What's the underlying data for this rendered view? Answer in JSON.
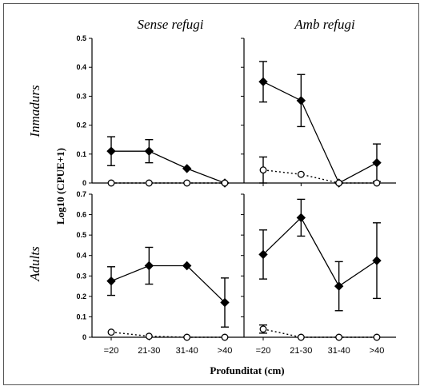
{
  "chart_data": {
    "type": "line",
    "xlabel": "Profunditat (cm)",
    "ylabel": "Log10 (CPUE+1)",
    "categories": [
      "=20",
      "21-30",
      "31-40",
      ">40"
    ],
    "column_titles": [
      "Sense refugi",
      "Amb refugi"
    ],
    "row_titles": [
      "Inmadurs",
      "Adults"
    ],
    "panels": [
      {
        "row": "Inmadurs",
        "column": "Sense refugi",
        "ylim": [
          0,
          0.5
        ],
        "yticks": [
          "0",
          "0.1",
          "0.2",
          "0.3",
          "0.4",
          "0.5"
        ],
        "series": [
          {
            "style": "filled-solid",
            "values": [
              0.11,
              0.11,
              0.05,
              0.0
            ],
            "errors": [
              0.05,
              0.04,
              0.0,
              0.0
            ]
          },
          {
            "style": "open-dotted",
            "values": [
              0.0,
              0.0,
              0.0,
              0.0
            ],
            "errors": [
              0,
              0,
              0,
              0
            ]
          }
        ]
      },
      {
        "row": "Inmadurs",
        "column": "Amb refugi",
        "ylim": [
          0,
          0.5
        ],
        "yticks": [],
        "series": [
          {
            "style": "filled-solid",
            "values": [
              0.35,
              0.285,
              0.0,
              0.07
            ],
            "errors": [
              0.07,
              0.09,
              0.0,
              0.065
            ]
          },
          {
            "style": "open-dotted",
            "values": [
              0.045,
              0.03,
              0.0,
              0.0
            ],
            "errors": [
              0.045,
              0.0,
              0.0,
              0.0
            ]
          }
        ]
      },
      {
        "row": "Adults",
        "column": "Sense refugi",
        "ylim": [
          0,
          0.7
        ],
        "yticks": [
          "0",
          "0.1",
          "0.2",
          "0.3",
          "0.4",
          "0.5",
          "0.6",
          "0.7"
        ],
        "series": [
          {
            "style": "filled-solid",
            "values": [
              0.275,
              0.35,
              0.35,
              0.17
            ],
            "errors": [
              0.07,
              0.09,
              0.0,
              0.12
            ]
          },
          {
            "style": "open-dotted",
            "values": [
              0.025,
              0.005,
              0.0,
              0.0
            ],
            "errors": [
              0,
              0,
              0,
              0
            ]
          }
        ]
      },
      {
        "row": "Adults",
        "column": "Amb refugi",
        "ylim": [
          0,
          0.7
        ],
        "yticks": [],
        "series": [
          {
            "style": "filled-solid",
            "values": [
              0.405,
              0.585,
              0.25,
              0.375
            ],
            "errors": [
              0.12,
              0.09,
              0.12,
              0.185
            ]
          },
          {
            "style": "open-dotted",
            "values": [
              0.04,
              0.0,
              0.0,
              0.0
            ],
            "errors": [
              0.02,
              0.0,
              0.0,
              0.0
            ]
          }
        ]
      }
    ]
  }
}
